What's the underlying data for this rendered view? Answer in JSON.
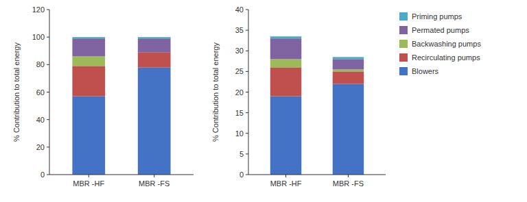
{
  "chart_data": [
    {
      "type": "bar",
      "stacked": true,
      "legend": "right",
      "ylabel": "% Contribution to total energy",
      "categories": [
        "MBR -HF",
        "MBR -FS"
      ],
      "ylim": [
        0,
        120
      ],
      "yticks": [
        0,
        20,
        40,
        60,
        80,
        100,
        120
      ],
      "series": [
        {
          "name": "Blowers",
          "color": "#4472C4",
          "values": [
            57,
            78
          ]
        },
        {
          "name": "Recirculating pumps",
          "color": "#C0504D",
          "values": [
            22,
            11
          ]
        },
        {
          "name": "Backwashing pumps",
          "color": "#9BBB59",
          "values": [
            7,
            0
          ]
        },
        {
          "name": "Permated pumps",
          "color": "#8064A2",
          "values": [
            13,
            10
          ]
        },
        {
          "name": "Priming pumps",
          "color": "#4BACC6",
          "values": [
            1,
            1
          ]
        }
      ]
    },
    {
      "type": "bar",
      "stacked": true,
      "ylabel": "% Contribution to total energy",
      "categories": [
        "MBR -HF",
        "MBR -FS"
      ],
      "ylim": [
        0,
        40
      ],
      "yticks": [
        0,
        5,
        10,
        15,
        20,
        25,
        30,
        35,
        40
      ],
      "series": [
        {
          "name": "Blowers",
          "color": "#4472C4",
          "values": [
            19,
            22
          ]
        },
        {
          "name": "Recirculating pumps",
          "color": "#C0504D",
          "values": [
            7,
            3
          ]
        },
        {
          "name": "Backwashing pumps",
          "color": "#9BBB59",
          "values": [
            2,
            0.5
          ]
        },
        {
          "name": "Permated pumps",
          "color": "#8064A2",
          "values": [
            5,
            2.5
          ]
        },
        {
          "name": "Priming pumps",
          "color": "#4BACC6",
          "values": [
            0.5,
            0.5
          ]
        }
      ]
    }
  ]
}
